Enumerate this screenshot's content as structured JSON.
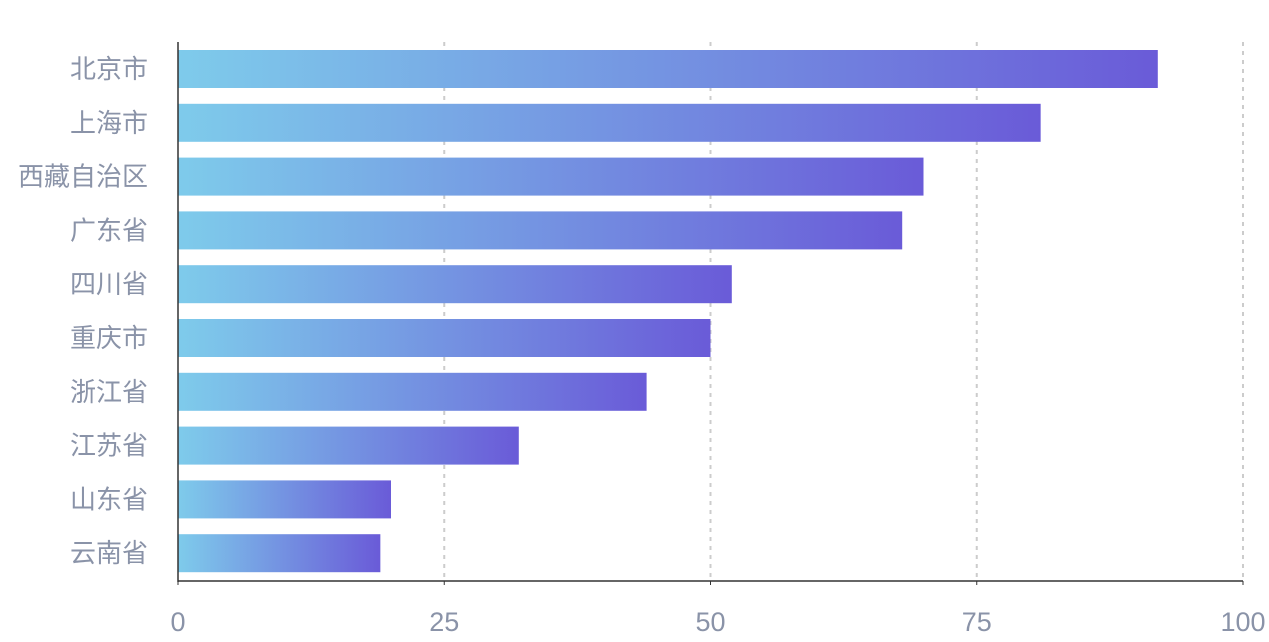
{
  "chart_data": {
    "type": "bar",
    "orientation": "horizontal",
    "categories": [
      "北京市",
      "上海市",
      "西藏自治区",
      "广东省",
      "四川省",
      "重庆市",
      "浙江省",
      "江苏省",
      "山东省",
      "云南省"
    ],
    "values": [
      92,
      81,
      70,
      68,
      52,
      50,
      44,
      32,
      20,
      19
    ],
    "xlim": [
      0,
      100
    ],
    "xticks": [
      "0",
      "25",
      "50",
      "75",
      "100"
    ],
    "tick_values": [
      0,
      25,
      50,
      75,
      100
    ],
    "grid": "vertical dashed",
    "bar_gradient": [
      "#7ecbeb",
      "#6a5bd8"
    ],
    "axis_color": "#333333",
    "grid_color": "#cccccc",
    "label_color": "#8a93a8"
  }
}
